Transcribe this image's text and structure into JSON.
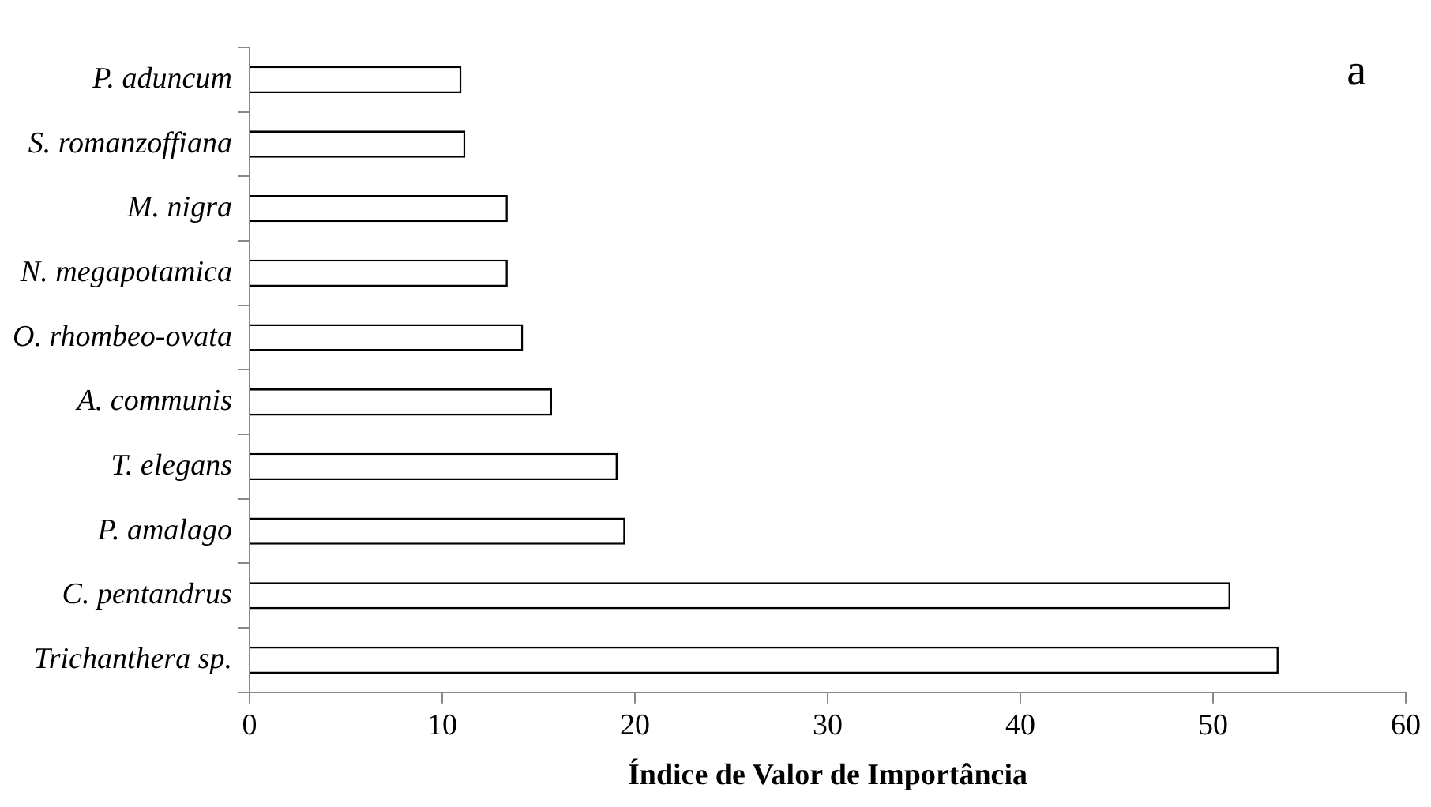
{
  "chart_data": {
    "type": "bar",
    "orientation": "horizontal",
    "xlabel": "Índice de Valor de Importância",
    "categories": [
      "P. aduncum",
      "S. romanzoffiana",
      "M. nigra",
      "N. megapotamica",
      "O. rhombeo-ovata",
      "A. communis",
      "T. elegans",
      "P. amalago",
      "C. pentandrus",
      "Trichanthera sp."
    ],
    "values": [
      11.0,
      11.2,
      13.4,
      13.4,
      14.2,
      15.7,
      19.1,
      19.5,
      50.9,
      53.4
    ],
    "color": "#ffffff",
    "xlim": [
      0,
      60
    ],
    "xticks": [
      0,
      10,
      20,
      30,
      40,
      50,
      60
    ],
    "grid": false,
    "legend": false,
    "annotations": [
      "a"
    ]
  }
}
